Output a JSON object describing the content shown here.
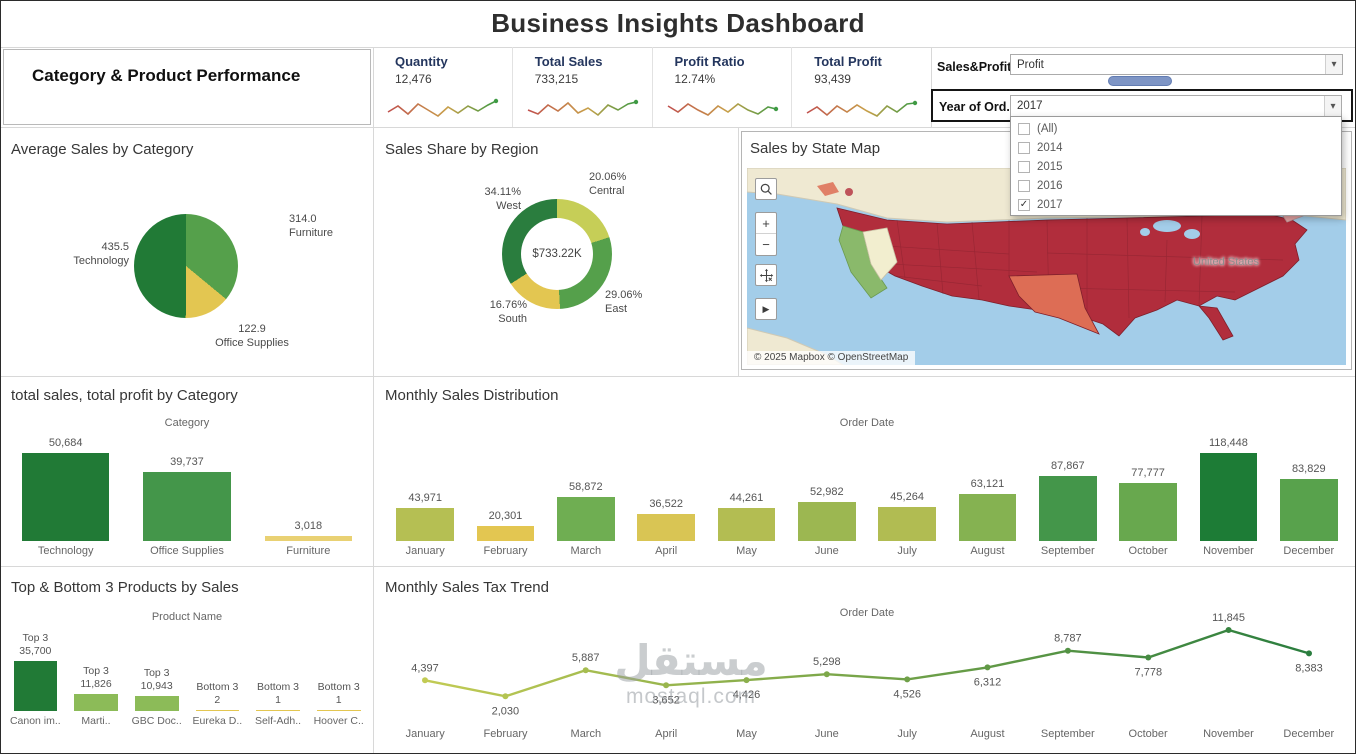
{
  "title": "Business Insights Dashboard",
  "panel_title": "Category & Product Performance",
  "kpis": [
    {
      "label": "Quantity",
      "value": "12,476"
    },
    {
      "label": "Total Sales",
      "value": "733,215"
    },
    {
      "label": "Profit Ratio",
      "value": "12.74%"
    },
    {
      "label": "Total Profit",
      "value": "93,439"
    }
  ],
  "filters": {
    "sales_profit_label": "Sales&Profit",
    "sales_profit_value": "Profit",
    "year_label": "Year of Ord..",
    "year_value": "2017",
    "year_options": [
      {
        "label": "(All)",
        "checked": false
      },
      {
        "label": "2014",
        "checked": false
      },
      {
        "label": "2015",
        "checked": false
      },
      {
        "label": "2016",
        "checked": false
      },
      {
        "label": "2017",
        "checked": true
      }
    ]
  },
  "sections": {
    "avg_sales": "Average Sales by Category",
    "sales_share": "Sales Share by Region",
    "state_map": "Sales by State Map",
    "category_perf": "total sales, total profit by Category",
    "monthly_dist": "Monthly Sales Distribution",
    "top_bottom": "Top & Bottom 3 Products by Sales",
    "tax_trend": "Monthly Sales Tax Trend"
  },
  "map": {
    "attribution": "© 2025 Mapbox © OpenStreetMap",
    "country_label": "United States"
  },
  "icons": {
    "caret": "▾",
    "check": "✓",
    "arrow": "▶",
    "zoom_in": "+",
    "zoom_out": "−"
  },
  "watermark": {
    "line1": "مستقل",
    "line2": "mostaql.com"
  },
  "colors": {
    "kpi_label": "#24365e",
    "slider": "#7e95c5",
    "spark_start": "#c0504d",
    "spark_mid": "#c8a04a",
    "spark_end": "#3f9a44",
    "map_ocean": "#a3cde9",
    "map_land": "#efe9d2",
    "map_state_red": "#b12d3c",
    "map_state_border": "#7e1f2b",
    "map_texas": "#dd6d55",
    "map_california": "#8ab96b",
    "map_nevada": "#f2eecf",
    "map_northeast_pink": "#e8a6a6"
  },
  "chart_data": [
    {
      "id": "avg_sales_pie",
      "type": "pie",
      "title": "Average Sales by Category",
      "slices": [
        {
          "label": "Furniture",
          "value": 314.0,
          "display": "314.0",
          "color": "#55a04b"
        },
        {
          "label": "Office Supplies",
          "value": 122.9,
          "display": "122.9",
          "color": "#e3c651"
        },
        {
          "label": "Technology",
          "value": 435.5,
          "display": "435.5",
          "color": "#217a36"
        }
      ]
    },
    {
      "id": "region_donut",
      "type": "pie",
      "subtype": "donut",
      "title": "Sales Share by Region",
      "center_label": "$733.22K",
      "slices": [
        {
          "label": "Central",
          "pct": 20.06,
          "display": "20.06%",
          "color": "#c6ce57"
        },
        {
          "label": "East",
          "pct": 29.06,
          "display": "29.06%",
          "color": "#55a04b"
        },
        {
          "label": "South",
          "pct": 16.76,
          "display": "16.76%",
          "color": "#e3c651"
        },
        {
          "label": "West",
          "pct": 34.11,
          "display": "34.11%",
          "color": "#2a7d3e"
        }
      ]
    },
    {
      "id": "category_bars",
      "type": "bar",
      "title": "total sales, total profit by Category",
      "axis_header": "Category",
      "categories": [
        "Technology",
        "Office Supplies",
        "Furniture"
      ],
      "values": [
        50684,
        39737,
        3018
      ],
      "labels": [
        "50,684",
        "39,737",
        "3,018"
      ],
      "colors": [
        "#217a36",
        "#44964a",
        "#e9d173"
      ],
      "ylim": [
        0,
        50684
      ]
    },
    {
      "id": "products_bars",
      "type": "bar",
      "title": "Top & Bottom 3 Products by Sales",
      "axis_header": "Product Name",
      "categories": [
        "Canon im..",
        "Marti..",
        "GBC Doc..",
        "Eureka D..",
        "Self-Adh..",
        "Hoover C.."
      ],
      "group_labels": [
        "Top 3",
        "Top 3",
        "Top 3",
        "Bottom 3",
        "Bottom 3",
        "Bottom 3"
      ],
      "values": [
        35700,
        11826,
        10943,
        2,
        1,
        1
      ],
      "labels": [
        "35,700",
        "11,826",
        "10,943",
        "2",
        "1",
        "1"
      ],
      "colors": [
        "#217a36",
        "#8cbb58",
        "#8cbb58",
        "#e3c651",
        "#e3c651",
        "#e3c651"
      ],
      "ylim": [
        0,
        35700
      ]
    },
    {
      "id": "monthly_sales",
      "type": "bar",
      "title": "Monthly Sales Distribution",
      "axis_header": "Order Date",
      "categories": [
        "January",
        "February",
        "March",
        "April",
        "May",
        "June",
        "July",
        "August",
        "September",
        "October",
        "November",
        "December"
      ],
      "values": [
        43971,
        20301,
        58872,
        36522,
        44261,
        52982,
        45264,
        63121,
        87867,
        77777,
        118448,
        83829
      ],
      "labels": [
        "43,971",
        "20,301",
        "58,872",
        "36,522",
        "44,261",
        "52,982",
        "45,264",
        "63,121",
        "87,867",
        "77,777",
        "118,448",
        "83,829"
      ],
      "colors": [
        "#b5bf53",
        "#e3c651",
        "#6fae52",
        "#d9c554",
        "#b3bd52",
        "#9cb751",
        "#b1bc52",
        "#85b251",
        "#44964a",
        "#68a84e",
        "#1d7c36",
        "#58a24c"
      ],
      "ylim": [
        0,
        118448
      ]
    },
    {
      "id": "tax_trend",
      "type": "line",
      "title": "Monthly Sales Tax Trend",
      "axis_header": "Order Date",
      "categories": [
        "January",
        "February",
        "March",
        "April",
        "May",
        "June",
        "July",
        "August",
        "September",
        "October",
        "November",
        "December"
      ],
      "values": [
        4397,
        2030,
        5887,
        3652,
        4426,
        5298,
        4526,
        6312,
        8787,
        7778,
        11845,
        8383
      ],
      "labels": [
        "4,397",
        "2,030",
        "5,887",
        "3,652",
        "4,426",
        "5,298",
        "4,526",
        "6,312",
        "8,787",
        "7,778",
        "11,845",
        "8,383"
      ],
      "label_positions": [
        "above",
        "below",
        "above",
        "below",
        "below",
        "above",
        "below",
        "below",
        "above",
        "below",
        "above",
        "below"
      ],
      "line_color_start": "#c2cb54",
      "line_color_end": "#2a7d3e",
      "ylim": [
        0,
        11845
      ]
    }
  ]
}
